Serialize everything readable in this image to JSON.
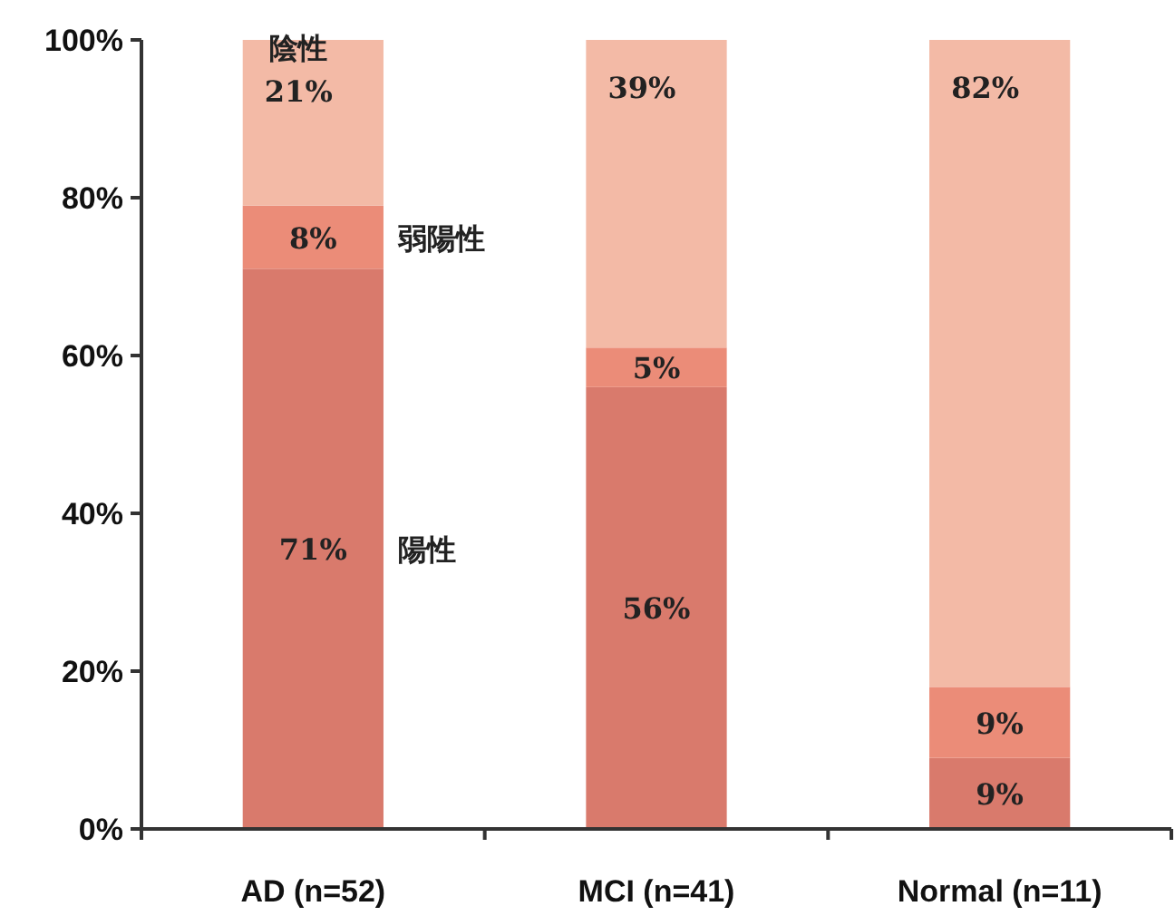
{
  "chart_data": {
    "type": "bar",
    "stacked": true,
    "categories": [
      "AD (n=52)",
      "MCI (n=41)",
      "Normal (n=11)"
    ],
    "series": [
      {
        "name": "陽性",
        "color": "#d97a6c",
        "values": [
          71,
          56,
          9
        ],
        "value_labels": [
          "71%",
          "56%",
          "9%"
        ]
      },
      {
        "name": "弱陽性",
        "color": "#eb8c78",
        "values": [
          8,
          5,
          9
        ],
        "value_labels": [
          "8%",
          "5%",
          "9%"
        ]
      },
      {
        "name": "陰性",
        "color": "#f3baa6",
        "values": [
          21,
          39,
          82
        ],
        "value_labels": [
          "21%",
          "39%",
          "82%"
        ]
      }
    ],
    "ylim": [
      0,
      100
    ],
    "yticks": [
      {
        "value": 0,
        "label": "0%"
      },
      {
        "value": 20,
        "label": "20%"
      },
      {
        "value": 40,
        "label": "40%"
      },
      {
        "value": 60,
        "label": "60%"
      },
      {
        "value": 80,
        "label": "80%"
      },
      {
        "value": 100,
        "label": "100%"
      }
    ],
    "grid": false,
    "legend": false
  }
}
